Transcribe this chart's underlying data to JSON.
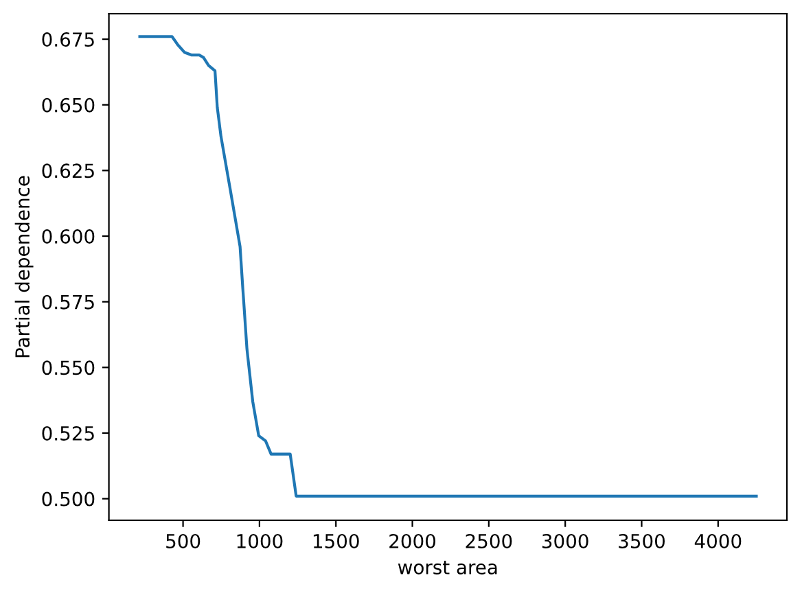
{
  "chart_data": {
    "type": "line",
    "xlabel": "worst area",
    "ylabel": "Partial dependence",
    "x": [
      217,
      428,
      464,
      509,
      554,
      605,
      634,
      667,
      709,
      724,
      748,
      808,
      873,
      891,
      897,
      918,
      956,
      995,
      1040,
      1076,
      1201,
      1240,
      4250
    ],
    "series": [
      {
        "color": "#1f77b4",
        "values": [
          0.676,
          0.676,
          0.673,
          0.67,
          0.669,
          0.669,
          0.668,
          0.665,
          0.663,
          0.649,
          0.638,
          0.618,
          0.596,
          0.58,
          0.575,
          0.557,
          0.537,
          0.524,
          0.522,
          0.517,
          0.517,
          0.501,
          0.501
        ]
      }
    ],
    "xlim": [
      15,
      4450
    ],
    "xticks": [
      500,
      1000,
      1500,
      2000,
      2500,
      3000,
      3500,
      4000
    ],
    "ylim": [
      0.4918,
      0.6847
    ],
    "yticks": [
      {
        "value": 0.5,
        "label": "0.500"
      },
      {
        "value": 0.525,
        "label": "0.525"
      },
      {
        "value": 0.55,
        "label": "0.550"
      },
      {
        "value": 0.575,
        "label": "0.575"
      },
      {
        "value": 0.6,
        "label": "0.600"
      },
      {
        "value": 0.625,
        "label": "0.625"
      },
      {
        "value": 0.65,
        "label": "0.650"
      },
      {
        "value": 0.675,
        "label": "0.675"
      }
    ],
    "grid": false,
    "marker": "none",
    "line_style": "solid"
  }
}
